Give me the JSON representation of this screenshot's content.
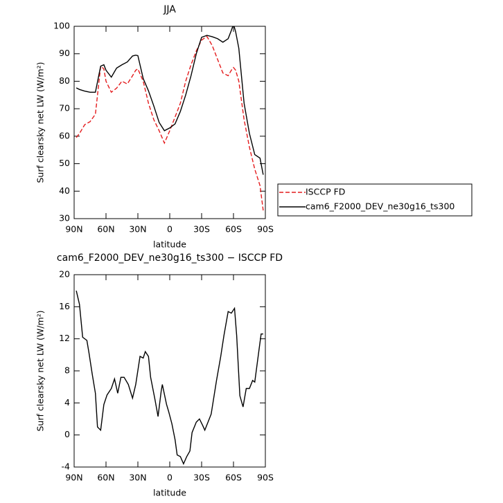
{
  "chart_data": [
    {
      "type": "line",
      "title": "JJA",
      "x_label": "latitude",
      "y_label": "Surf clearsky net LW (W/m²)",
      "x": [
        88,
        85,
        80,
        75,
        70,
        65,
        62,
        60,
        55,
        50,
        45,
        40,
        35,
        32,
        30,
        25,
        20,
        15,
        10,
        5,
        0,
        -5,
        -10,
        -15,
        -20,
        -25,
        -30,
        -35,
        -40,
        -45,
        -50,
        -55,
        -58,
        -60,
        -62,
        -65,
        -70,
        -75,
        -80,
        -85,
        -88
      ],
      "series": [
        {
          "name": "ISCCP FD",
          "color": "#e41a1c",
          "line_style": "dashed",
          "values": [
            59.5,
            61,
            64.2,
            65.3,
            68,
            85.5,
            84.5,
            80,
            76,
            77.5,
            80,
            79,
            82,
            84,
            84.5,
            80,
            72,
            66,
            62,
            57.5,
            62,
            67,
            72,
            80,
            86,
            91,
            95,
            96.3,
            93,
            88,
            83,
            82,
            84,
            85,
            84,
            80,
            66,
            56,
            48,
            42,
            33
          ]
        },
        {
          "name": "cam6_F2000_DEV_ne30g16_ts300",
          "color": "#000000",
          "line_style": "solid",
          "values": [
            77.6,
            77,
            76.4,
            76,
            76,
            85.5,
            86,
            84,
            81.5,
            84.8,
            86,
            87,
            89.2,
            89.5,
            89.3,
            81,
            76.5,
            71,
            65,
            62,
            63,
            64.5,
            69,
            75,
            82,
            90,
            96,
            96.7,
            96.2,
            95.5,
            94.2,
            95.5,
            98.5,
            100.8,
            98,
            92,
            72,
            61,
            53.3,
            52,
            46
          ]
        }
      ],
      "xlim": [
        90,
        -90
      ],
      "xticks": [
        {
          "value": 90,
          "label": "90N"
        },
        {
          "value": 60,
          "label": "60N"
        },
        {
          "value": 30,
          "label": "30N"
        },
        0,
        {
          "value": -30,
          "label": "30S"
        },
        {
          "value": -60,
          "label": "60S"
        },
        {
          "value": -90,
          "label": "90S"
        }
      ],
      "ylim": [
        30,
        100
      ],
      "yticks": [
        30,
        40,
        50,
        60,
        70,
        80,
        90,
        100
      ],
      "legend": "right"
    },
    {
      "type": "line",
      "title": "cam6_F2000_DEV_ne30g16_ts300 − ISCCP FD",
      "x_label": "latitude",
      "y_label": "Surf clearsky net LW (W/m²)",
      "x": [
        88,
        85,
        82,
        78,
        76,
        73,
        70,
        68,
        65,
        62,
        59,
        55,
        52,
        49,
        46,
        43,
        39,
        35,
        32,
        28,
        25,
        23,
        20,
        18,
        14,
        11,
        8,
        7,
        3,
        1,
        -2,
        -5,
        -7,
        -10,
        -13,
        -16,
        -19,
        -21,
        -25,
        -28,
        -31,
        -33,
        -36,
        -39,
        -44,
        -48,
        -51,
        -55,
        -58,
        -61,
        -63,
        -66,
        -69,
        -72,
        -75,
        -78,
        -80,
        -84,
        -86,
        -88
      ],
      "series": [
        {
          "color": "#000000",
          "line_style": "solid",
          "values": [
            18,
            16.3,
            12.2,
            11.8,
            10.2,
            7.6,
            5.2,
            1,
            0.6,
            3.8,
            5,
            5.8,
            7,
            5.2,
            7.2,
            7.2,
            6.3,
            4.6,
            6.3,
            9.8,
            9.6,
            10.4,
            9.8,
            7.2,
            4.5,
            2.3,
            5.5,
            6.3,
            3.8,
            2.9,
            1.4,
            -0.6,
            -2.5,
            -2.7,
            -3.6,
            -2.7,
            -2,
            0.3,
            1.6,
            2,
            1.2,
            0.6,
            1.6,
            2.6,
            6.8,
            9.8,
            12.4,
            15.4,
            15.2,
            15.8,
            12.4,
            4.9,
            3.5,
            5.8,
            5.8,
            6.8,
            6.6,
            10.6,
            12.6,
            12.6
          ]
        }
      ],
      "xlim": [
        90,
        -90
      ],
      "xticks": [
        {
          "value": 90,
          "label": "90N"
        },
        {
          "value": 60,
          "label": "60N"
        },
        {
          "value": 30,
          "label": "30N"
        },
        0,
        {
          "value": -30,
          "label": "30S"
        },
        {
          "value": -60,
          "label": "60S"
        },
        {
          "value": -90,
          "label": "90S"
        }
      ],
      "ylim": [
        -4,
        20
      ],
      "yticks": [
        -4,
        0,
        4,
        8,
        12,
        16,
        20
      ]
    }
  ]
}
